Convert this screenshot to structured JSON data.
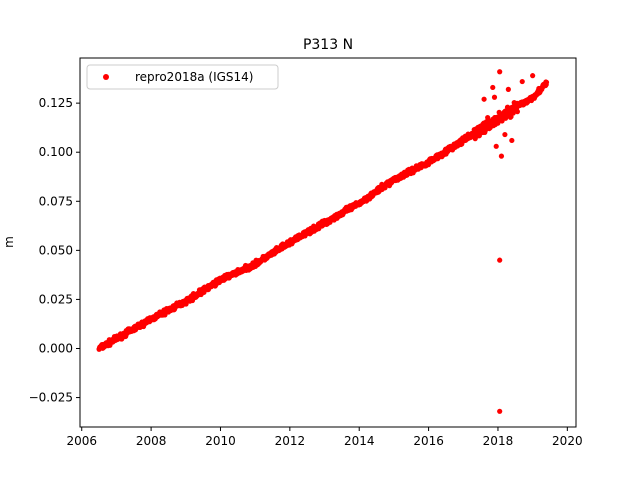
{
  "chart_data": {
    "type": "scatter",
    "title": "P313 N",
    "xlabel": "",
    "ylabel": "m",
    "xlim": [
      2005.95,
      2020.25
    ],
    "ylim": [
      -0.04,
      0.148
    ],
    "x_ticks": [
      2006,
      2008,
      2010,
      2012,
      2014,
      2016,
      2018,
      2020
    ],
    "y_ticks": [
      -0.025,
      0.0,
      0.025,
      0.05,
      0.075,
      0.1,
      0.125
    ],
    "y_tick_labels": [
      "−0.025",
      "0.000",
      "0.025",
      "0.050",
      "0.075",
      "0.100",
      "0.125"
    ],
    "grid": false,
    "legend_position": "upper-left",
    "series": [
      {
        "name": "repro2018a (IGS14)",
        "color": "#ff0000",
        "marker": "circle",
        "trend_points": [
          {
            "x": 2006.5,
            "y": 0.0
          },
          {
            "x": 2008.0,
            "y": 0.015
          },
          {
            "x": 2009.0,
            "y": 0.024
          },
          {
            "x": 2010.0,
            "y": 0.035
          },
          {
            "x": 2011.0,
            "y": 0.043
          },
          {
            "x": 2012.0,
            "y": 0.054
          },
          {
            "x": 2013.0,
            "y": 0.064
          },
          {
            "x": 2014.0,
            "y": 0.074
          },
          {
            "x": 2015.0,
            "y": 0.086
          },
          {
            "x": 2016.0,
            "y": 0.095
          },
          {
            "x": 2017.0,
            "y": 0.106
          },
          {
            "x": 2018.0,
            "y": 0.117
          },
          {
            "x": 2019.0,
            "y": 0.128
          },
          {
            "x": 2019.4,
            "y": 0.135
          }
        ],
        "outliers": [
          {
            "x": 2018.05,
            "y": 0.141
          },
          {
            "x": 2017.85,
            "y": 0.133
          },
          {
            "x": 2017.9,
            "y": 0.128
          },
          {
            "x": 2017.95,
            "y": 0.103
          },
          {
            "x": 2018.1,
            "y": 0.098
          },
          {
            "x": 2018.05,
            "y": 0.045
          },
          {
            "x": 2018.05,
            "y": -0.032
          },
          {
            "x": 2018.4,
            "y": 0.106
          },
          {
            "x": 2018.3,
            "y": 0.132
          },
          {
            "x": 2018.2,
            "y": 0.109
          },
          {
            "x": 2017.6,
            "y": 0.127
          },
          {
            "x": 2018.7,
            "y": 0.136
          },
          {
            "x": 2019.0,
            "y": 0.139
          }
        ]
      }
    ]
  }
}
